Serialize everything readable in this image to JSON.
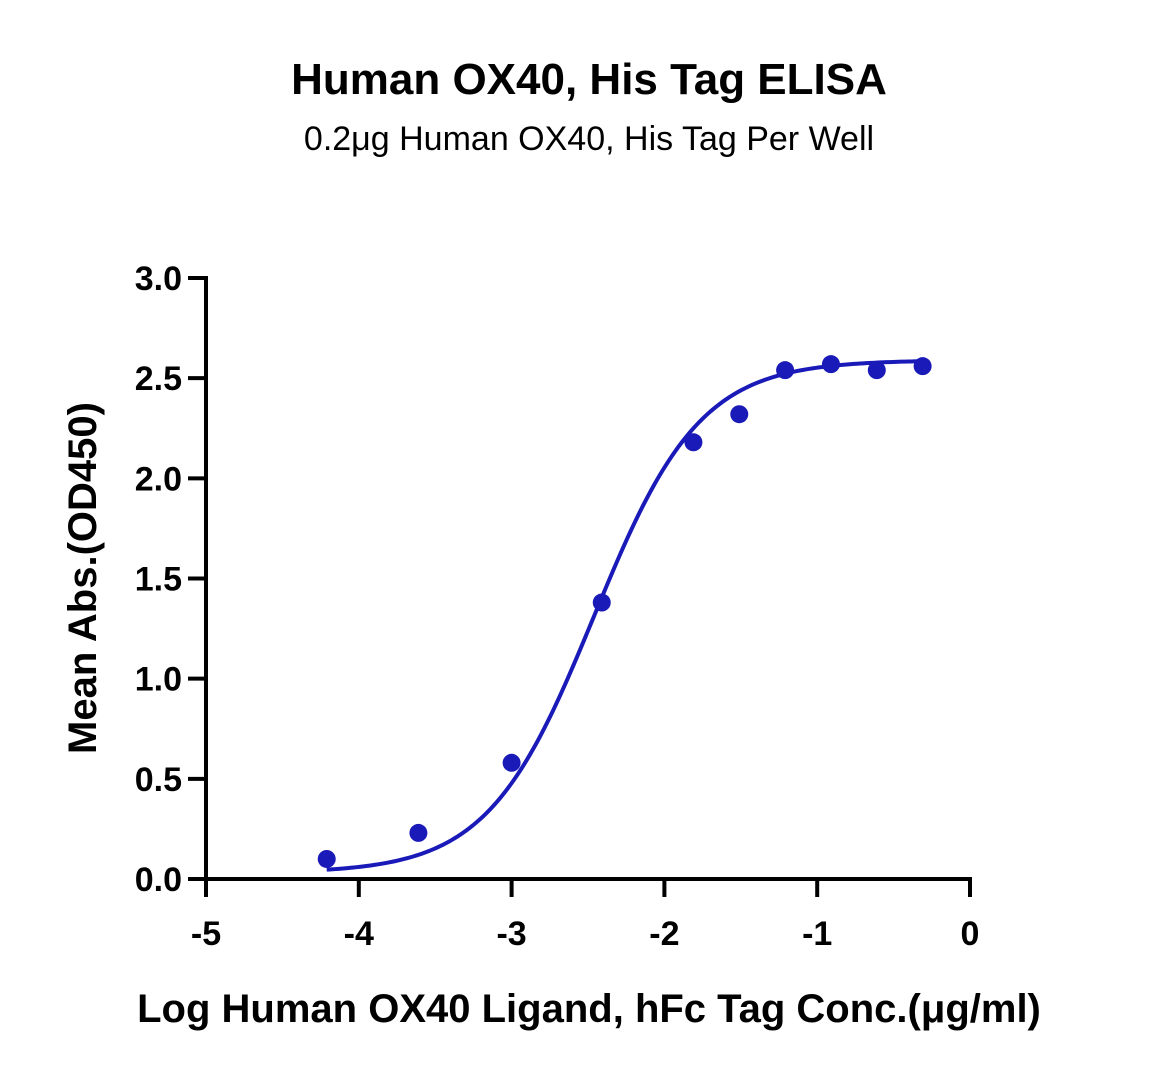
{
  "chart_data": {
    "type": "scatter",
    "title": "Human OX40, His Tag ELISA",
    "subtitle": "0.2μg Human OX40, His Tag Per Well",
    "xlabel": "Log Human OX40 Ligand, hFc Tag Conc.(μg/ml)",
    "ylabel": "Mean Abs.(OD450)",
    "xlim": [
      -5,
      0
    ],
    "ylim": [
      0,
      3.0
    ],
    "x_ticks": [
      -5,
      -4,
      -3,
      -2,
      -1,
      0
    ],
    "x_tick_labels": [
      "-5",
      "-4",
      "-3",
      "-2",
      "-1",
      "0"
    ],
    "y_ticks": [
      0,
      0.5,
      1.0,
      1.5,
      2.0,
      2.5,
      3.0
    ],
    "y_tick_labels": [
      "0.0",
      "0.5",
      "1.0",
      "1.5",
      "2.0",
      "2.5",
      "3.0"
    ],
    "grid": false,
    "series": [
      {
        "color": "#1a1ab8",
        "marker": "circle",
        "fit": "sigmoidal",
        "x": [
          -4.21,
          -3.61,
          -3.0,
          -2.41,
          -1.81,
          -1.51,
          -1.21,
          -0.91,
          -0.61,
          -0.31
        ],
        "y": [
          0.1,
          0.23,
          0.58,
          1.38,
          2.18,
          2.32,
          2.54,
          2.57,
          2.54,
          2.56
        ]
      }
    ]
  }
}
